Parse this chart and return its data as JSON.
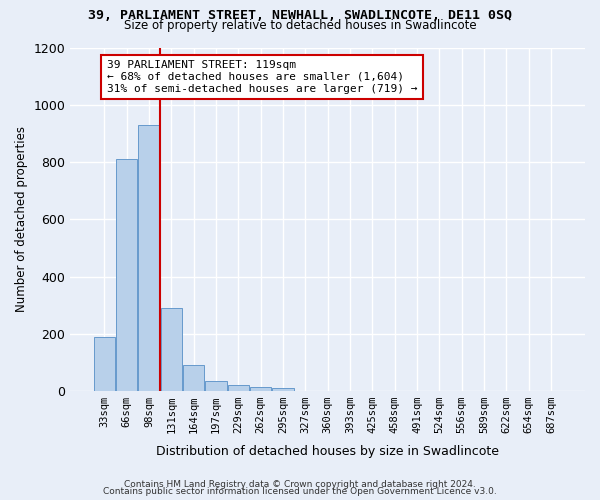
{
  "title1": "39, PARLIAMENT STREET, NEWHALL, SWADLINCOTE, DE11 0SQ",
  "title2": "Size of property relative to detached houses in Swadlincote",
  "xlabel": "Distribution of detached houses by size in Swadlincote",
  "ylabel": "Number of detached properties",
  "bin_labels": [
    "33sqm",
    "66sqm",
    "98sqm",
    "131sqm",
    "164sqm",
    "197sqm",
    "229sqm",
    "262sqm",
    "295sqm",
    "327sqm",
    "360sqm",
    "393sqm",
    "425sqm",
    "458sqm",
    "491sqm",
    "524sqm",
    "556sqm",
    "589sqm",
    "622sqm",
    "654sqm",
    "687sqm"
  ],
  "bar_values": [
    190,
    810,
    930,
    290,
    90,
    35,
    20,
    13,
    10,
    0,
    0,
    0,
    0,
    0,
    0,
    0,
    0,
    0,
    0,
    0,
    0
  ],
  "bar_color": "#b8d0ea",
  "bar_edge_color": "#6699cc",
  "vline_color": "#cc0000",
  "annotation_text": "39 PARLIAMENT STREET: 119sqm\n← 68% of detached houses are smaller (1,604)\n31% of semi-detached houses are larger (719) →",
  "annotation_box_color": "#ffffff",
  "annotation_box_edge": "#cc0000",
  "ylim": [
    0,
    1200
  ],
  "yticks": [
    0,
    200,
    400,
    600,
    800,
    1000,
    1200
  ],
  "footer1": "Contains HM Land Registry data © Crown copyright and database right 2024.",
  "footer2": "Contains public sector information licensed under the Open Government Licence v3.0.",
  "bg_color": "#e8eef8",
  "plot_bg_color": "#e8eef8",
  "grid_color": "#ffffff"
}
